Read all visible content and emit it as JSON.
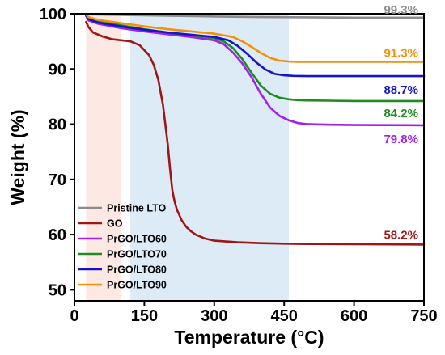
{
  "chart_data": {
    "type": "line",
    "xlabel": "Temperature (°C)",
    "ylabel": "Weight (%)",
    "xlim": [
      0,
      750
    ],
    "ylim": [
      48,
      100
    ],
    "xticks": [
      0,
      150,
      300,
      450,
      600,
      750
    ],
    "yticks": [
      50,
      60,
      70,
      80,
      90,
      100
    ],
    "legend_position": "bottom-left",
    "shaded_regions": [
      {
        "x": [
          25,
          100
        ],
        "color": "#fde8e3"
      },
      {
        "x": [
          120,
          460
        ],
        "color": "#dcebf6"
      }
    ],
    "series": [
      {
        "name": "Pristine LTO",
        "color": "#8c8c8c",
        "end_label": "99.3%",
        "x": [
          25,
          50,
          100,
          200,
          300,
          400,
          500,
          600,
          750
        ],
        "y": [
          99.9,
          99.85,
          99.8,
          99.65,
          99.5,
          99.4,
          99.35,
          99.3,
          99.3
        ]
      },
      {
        "name": "GO",
        "color": "#a01515",
        "end_label": "58.2%",
        "x": [
          25,
          30,
          40,
          60,
          80,
          100,
          120,
          140,
          160,
          170,
          180,
          190,
          200,
          205,
          210,
          215,
          220,
          230,
          240,
          250,
          260,
          280,
          300,
          350,
          400,
          450,
          500,
          600,
          750
        ],
        "y": [
          98.5,
          97.6,
          96.6,
          95.9,
          95.4,
          95.2,
          95.0,
          94.3,
          92.5,
          90.8,
          88.0,
          83.5,
          76.5,
          72.0,
          68.0,
          66.0,
          64.5,
          62.6,
          61.4,
          60.6,
          60.0,
          59.3,
          58.9,
          58.6,
          58.45,
          58.35,
          58.3,
          58.25,
          58.2
        ]
      },
      {
        "name": "PrGO/LTO60",
        "color": "#a020f0",
        "end_label": "79.8%",
        "x": [
          25,
          30,
          50,
          100,
          150,
          200,
          250,
          300,
          320,
          340,
          360,
          380,
          400,
          420,
          440,
          460,
          480,
          500,
          550,
          600,
          750
        ],
        "y": [
          99.6,
          98.8,
          98.2,
          97.4,
          96.8,
          96.3,
          95.8,
          95.2,
          94.5,
          93.0,
          91.0,
          88.5,
          85.5,
          83.0,
          81.5,
          80.7,
          80.2,
          80.0,
          79.9,
          79.85,
          79.8
        ]
      },
      {
        "name": "PrGO/LTO70",
        "color": "#1e8c1e",
        "end_label": "84.2%",
        "x": [
          25,
          30,
          50,
          100,
          150,
          200,
          250,
          300,
          320,
          340,
          360,
          380,
          400,
          420,
          440,
          460,
          480,
          500,
          550,
          600,
          750
        ],
        "y": [
          99.8,
          99.2,
          98.6,
          97.9,
          97.2,
          96.6,
          96.1,
          95.6,
          95.0,
          93.8,
          91.8,
          89.3,
          87.0,
          85.5,
          84.8,
          84.5,
          84.35,
          84.3,
          84.25,
          84.2,
          84.2
        ]
      },
      {
        "name": "PrGO/LTO80",
        "color": "#1414c8",
        "end_label": "88.7%",
        "x": [
          25,
          30,
          50,
          100,
          150,
          200,
          250,
          300,
          330,
          350,
          370,
          390,
          410,
          430,
          450,
          470,
          500,
          600,
          750
        ],
        "y": [
          99.7,
          99.0,
          98.4,
          97.7,
          97.1,
          96.6,
          96.2,
          95.8,
          95.2,
          94.2,
          92.8,
          91.2,
          89.9,
          89.1,
          88.85,
          88.75,
          88.7,
          88.7,
          88.7
        ]
      },
      {
        "name": "PrGO/LTO90",
        "color": "#f5900a",
        "end_label": "91.3%",
        "x": [
          25,
          30,
          50,
          100,
          150,
          200,
          250,
          300,
          340,
          360,
          380,
          400,
          420,
          440,
          460,
          480,
          500,
          600,
          750
        ],
        "y": [
          99.9,
          99.4,
          98.9,
          98.3,
          97.7,
          97.2,
          96.8,
          96.4,
          95.8,
          95.0,
          94.0,
          92.9,
          92.0,
          91.5,
          91.35,
          91.3,
          91.3,
          91.3,
          91.3
        ]
      }
    ]
  }
}
